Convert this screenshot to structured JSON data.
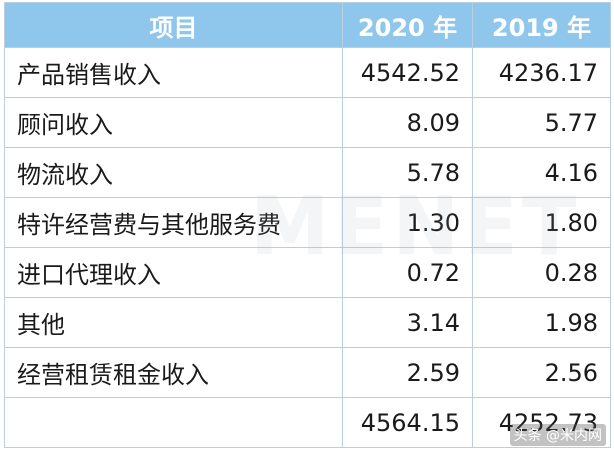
{
  "table": {
    "header": [
      "项目",
      "2020 年",
      "2019 年"
    ],
    "rows": [
      [
        "产品销售收入",
        "4542.52",
        "4236.17"
      ],
      [
        "顾问收入",
        "8.09",
        "5.77"
      ],
      [
        "物流收入",
        "5.78",
        "4.16"
      ],
      [
        "特许经营费与其他服务费",
        "1.30",
        "1.80"
      ],
      [
        "进口代理收入",
        "0.72",
        "0.28"
      ],
      [
        "其他",
        "3.14",
        "1.98"
      ],
      [
        "经营租赁租金收入",
        "2.59",
        "2.56"
      ]
    ],
    "total_row": [
      "4564.15",
      "4252.73"
    ]
  },
  "watermark": {
    "logo": "MENET",
    "source": "头条 @米内网"
  }
}
